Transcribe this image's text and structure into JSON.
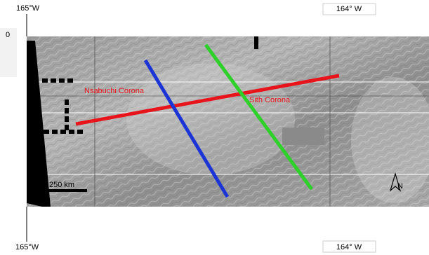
{
  "map": {
    "top_labels": [
      "165°W",
      "164° W"
    ],
    "bottom_labels": [
      "165°W",
      "164° W"
    ],
    "left_labels": [
      "0"
    ],
    "features": [
      {
        "label": "Nsabuchi Corona"
      },
      {
        "label": "Sith Corona"
      }
    ],
    "scale_bar": "250 km",
    "north": "N"
  }
}
